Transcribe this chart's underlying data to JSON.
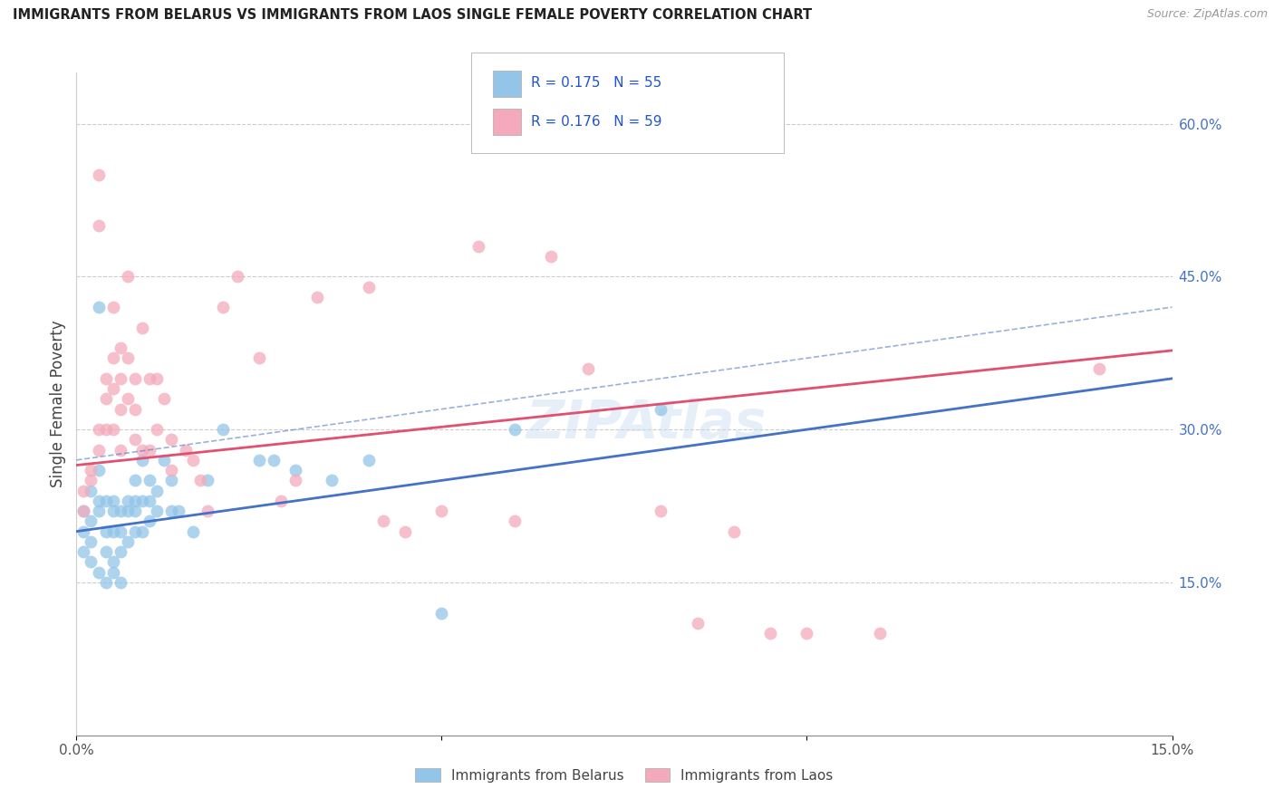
{
  "title": "IMMIGRANTS FROM BELARUS VS IMMIGRANTS FROM LAOS SINGLE FEMALE POVERTY CORRELATION CHART",
  "source": "Source: ZipAtlas.com",
  "ylabel": "Single Female Poverty",
  "ylabel_right_labels": [
    "60.0%",
    "45.0%",
    "30.0%",
    "15.0%"
  ],
  "ylabel_right_positions": [
    0.6,
    0.45,
    0.3,
    0.15
  ],
  "xmin": 0.0,
  "xmax": 0.15,
  "ymin": 0.0,
  "ymax": 0.65,
  "color_belarus": "#92C5E8",
  "color_laos": "#F4AABB",
  "line_color_belarus": "#4472C4",
  "line_color_laos": "#E05070",
  "watermark": "ZIPAtlas",
  "legend_label1": "Immigrants from Belarus",
  "legend_label2": "Immigrants from Laos",
  "belarus_intercept": 0.2,
  "belarus_slope": 1.0,
  "laos_intercept": 0.265,
  "laos_slope": 0.75,
  "belarus_x": [
    0.001,
    0.001,
    0.001,
    0.002,
    0.002,
    0.002,
    0.002,
    0.003,
    0.003,
    0.003,
    0.003,
    0.003,
    0.004,
    0.004,
    0.004,
    0.004,
    0.005,
    0.005,
    0.005,
    0.005,
    0.005,
    0.006,
    0.006,
    0.006,
    0.006,
    0.007,
    0.007,
    0.007,
    0.008,
    0.008,
    0.008,
    0.008,
    0.009,
    0.009,
    0.009,
    0.01,
    0.01,
    0.01,
    0.011,
    0.011,
    0.012,
    0.013,
    0.013,
    0.014,
    0.016,
    0.018,
    0.02,
    0.025,
    0.027,
    0.03,
    0.035,
    0.04,
    0.05,
    0.06,
    0.08
  ],
  "belarus_y": [
    0.22,
    0.2,
    0.18,
    0.24,
    0.19,
    0.21,
    0.17,
    0.23,
    0.22,
    0.16,
    0.26,
    0.42,
    0.2,
    0.23,
    0.18,
    0.15,
    0.17,
    0.23,
    0.22,
    0.2,
    0.16,
    0.22,
    0.2,
    0.18,
    0.15,
    0.23,
    0.22,
    0.19,
    0.25,
    0.23,
    0.22,
    0.2,
    0.27,
    0.23,
    0.2,
    0.25,
    0.23,
    0.21,
    0.24,
    0.22,
    0.27,
    0.25,
    0.22,
    0.22,
    0.2,
    0.25,
    0.3,
    0.27,
    0.27,
    0.26,
    0.25,
    0.27,
    0.12,
    0.3,
    0.32
  ],
  "laos_x": [
    0.001,
    0.001,
    0.002,
    0.002,
    0.003,
    0.003,
    0.003,
    0.003,
    0.004,
    0.004,
    0.004,
    0.005,
    0.005,
    0.005,
    0.005,
    0.006,
    0.006,
    0.006,
    0.006,
    0.007,
    0.007,
    0.007,
    0.008,
    0.008,
    0.008,
    0.009,
    0.009,
    0.01,
    0.01,
    0.011,
    0.011,
    0.012,
    0.013,
    0.013,
    0.015,
    0.016,
    0.017,
    0.018,
    0.02,
    0.022,
    0.025,
    0.028,
    0.03,
    0.033,
    0.04,
    0.042,
    0.045,
    0.05,
    0.055,
    0.06,
    0.065,
    0.07,
    0.08,
    0.085,
    0.09,
    0.095,
    0.1,
    0.11,
    0.14
  ],
  "laos_y": [
    0.24,
    0.22,
    0.26,
    0.25,
    0.55,
    0.5,
    0.3,
    0.28,
    0.35,
    0.33,
    0.3,
    0.42,
    0.37,
    0.34,
    0.3,
    0.38,
    0.35,
    0.32,
    0.28,
    0.45,
    0.37,
    0.33,
    0.35,
    0.32,
    0.29,
    0.4,
    0.28,
    0.35,
    0.28,
    0.35,
    0.3,
    0.33,
    0.29,
    0.26,
    0.28,
    0.27,
    0.25,
    0.22,
    0.42,
    0.45,
    0.37,
    0.23,
    0.25,
    0.43,
    0.44,
    0.21,
    0.2,
    0.22,
    0.48,
    0.21,
    0.47,
    0.36,
    0.22,
    0.11,
    0.2,
    0.1,
    0.1,
    0.1,
    0.36
  ]
}
